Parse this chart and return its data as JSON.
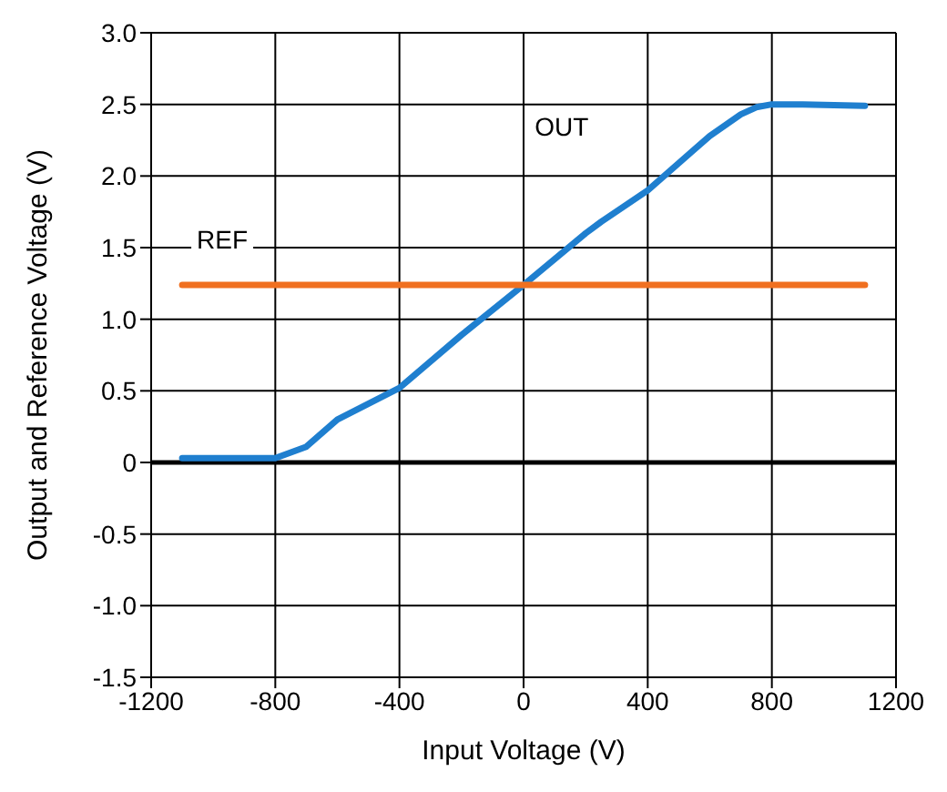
{
  "chart_data": {
    "type": "line",
    "xlabel": "Input Voltage (V)",
    "ylabel": "Output and Reference Voltage (V)",
    "xlim": [
      -1200,
      1200
    ],
    "xticks": [
      -1200,
      -800,
      -400,
      0,
      400,
      800,
      1200
    ],
    "ylim": [
      -1.5,
      3.0
    ],
    "yticks": [
      {
        "value": -1.5,
        "label": "-1.5"
      },
      {
        "value": -1.0,
        "label": "-1.0"
      },
      {
        "value": -0.5,
        "label": "-0.5"
      },
      0,
      {
        "value": 0.5,
        "label": "0.5"
      },
      {
        "value": 1.0,
        "label": "1.0"
      },
      {
        "value": 1.5,
        "label": "1.5"
      },
      {
        "value": 2.0,
        "label": "2.0"
      },
      {
        "value": 2.5,
        "label": "2.5"
      },
      {
        "value": 3.0,
        "label": "3.0"
      }
    ],
    "grid": true,
    "marker": "none",
    "line_style": "solid",
    "ref_lines": [
      {
        "axis": "y",
        "value": 0,
        "color": "#000000"
      }
    ],
    "series": [
      {
        "name": "OUT",
        "color": "#1f7fcf",
        "x": [
          -1100,
          -800,
          -700,
          -600,
          -400,
          -200,
          0,
          200,
          250,
          400,
          600,
          700,
          750,
          800,
          900,
          1100
        ],
        "values": [
          0.03,
          0.03,
          0.11,
          0.3,
          0.52,
          0.89,
          1.24,
          1.6,
          1.68,
          1.9,
          2.28,
          2.43,
          2.48,
          2.5,
          2.5,
          2.49
        ]
      },
      {
        "name": "REF",
        "color": "#f07020",
        "x": [
          -1100,
          1100
        ],
        "values": [
          1.24,
          1.24
        ]
      }
    ]
  }
}
